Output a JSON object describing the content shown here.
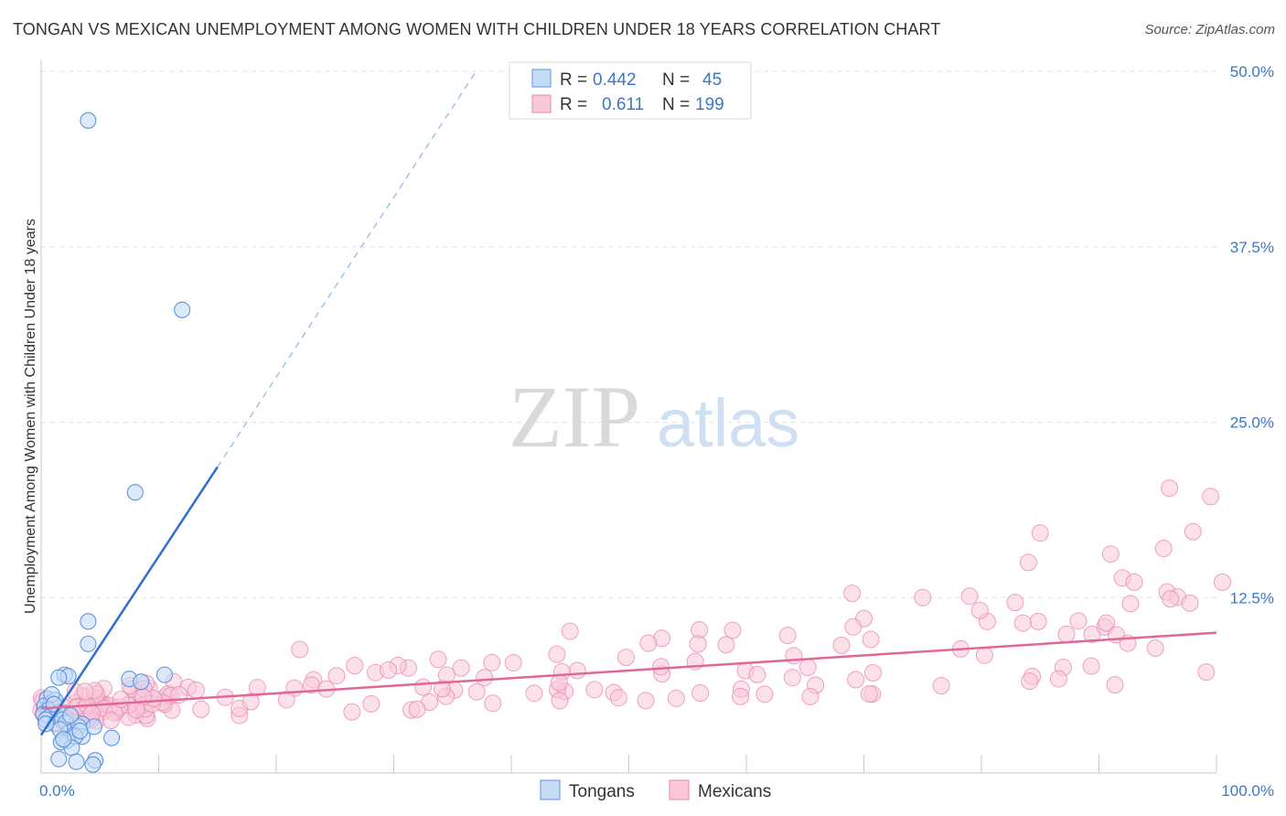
{
  "title": "TONGAN VS MEXICAN UNEMPLOYMENT AMONG WOMEN WITH CHILDREN UNDER 18 YEARS CORRELATION CHART",
  "source": "Source: ZipAtlas.com",
  "watermark": {
    "zip": "ZIP",
    "atlas": "atlas"
  },
  "chart_data": {
    "type": "scatter",
    "title": "TONGAN VS MEXICAN UNEMPLOYMENT AMONG WOMEN WITH CHILDREN UNDER 18 YEARS CORRELATION CHART",
    "xlabel": "",
    "ylabel": "Unemployment Among Women with Children Under 18 years",
    "xlim": [
      0,
      100
    ],
    "ylim": [
      0,
      50
    ],
    "x_tick_labels": [
      "0.0%",
      "100.0%"
    ],
    "y_ticks": [
      12.5,
      25.0,
      37.5,
      50.0
    ],
    "y_tick_labels": [
      "12.5%",
      "25.0%",
      "37.5%",
      "50.0%"
    ],
    "grid": true,
    "legend_position": "top-center",
    "series": [
      {
        "name": "Tongans",
        "color": "#5b95de",
        "fill": "#c6dbf6",
        "R": "0.442",
        "N": "45",
        "trend": {
          "x": [
            0,
            15
          ],
          "y": [
            2.7,
            21.8
          ],
          "dashed_to": {
            "x": 37,
            "y": 50
          }
        },
        "points": [
          [
            4,
            46.5
          ],
          [
            12,
            33
          ],
          [
            8,
            20
          ],
          [
            4,
            10.8
          ],
          [
            4,
            9.2
          ],
          [
            2,
            7
          ],
          [
            2.3,
            6.9
          ],
          [
            7.5,
            6.7
          ],
          [
            10.5,
            7
          ],
          [
            8.5,
            6.5
          ],
          [
            1.5,
            6.8
          ],
          [
            0.5,
            5.3
          ],
          [
            0.8,
            5
          ],
          [
            0.3,
            4.8
          ],
          [
            1.2,
            5.2
          ],
          [
            0.6,
            4.5
          ],
          [
            0.2,
            4.2
          ],
          [
            0.7,
            4
          ],
          [
            1.5,
            4.3
          ],
          [
            0.4,
            3.8
          ],
          [
            1.2,
            3.5
          ],
          [
            1.8,
            3.8
          ],
          [
            2.1,
            3.6
          ],
          [
            3.5,
            3.5
          ],
          [
            2.4,
            2.9
          ],
          [
            3.2,
            3.3
          ],
          [
            1.6,
            3.1
          ],
          [
            2.8,
            2.7
          ],
          [
            2.2,
            2.3
          ],
          [
            3.5,
            2.6
          ],
          [
            6,
            2.5
          ],
          [
            4.5,
            3.3
          ],
          [
            2.9,
            2.6
          ],
          [
            1.7,
            2.2
          ],
          [
            2.6,
            1.8
          ],
          [
            1.5,
            1
          ],
          [
            3,
            0.8
          ],
          [
            4.6,
            0.9
          ],
          [
            4.4,
            0.6
          ],
          [
            0.9,
            5.6
          ],
          [
            1.1,
            4.9
          ],
          [
            2.5,
            4.1
          ],
          [
            0.4,
            3.5
          ],
          [
            3.3,
            3.0
          ],
          [
            1.9,
            2.4
          ]
        ]
      },
      {
        "name": "Mexicans",
        "color": "#e687a8",
        "fill": "#f9c9da",
        "R": "0.611",
        "N": "199",
        "trend": {
          "x": [
            0,
            100
          ],
          "y": [
            4.6,
            10.0
          ]
        }
      }
    ]
  },
  "legend": {
    "rows": [
      {
        "r_label": "R =",
        "r_value": "0.442",
        "n_label": "N =",
        "n_value": "45"
      },
      {
        "r_label": "R =",
        "r_value": "0.611",
        "n_label": "N =",
        "n_value": "199"
      }
    ]
  },
  "bottom_legend": [
    "Tongans",
    "Mexicans"
  ]
}
